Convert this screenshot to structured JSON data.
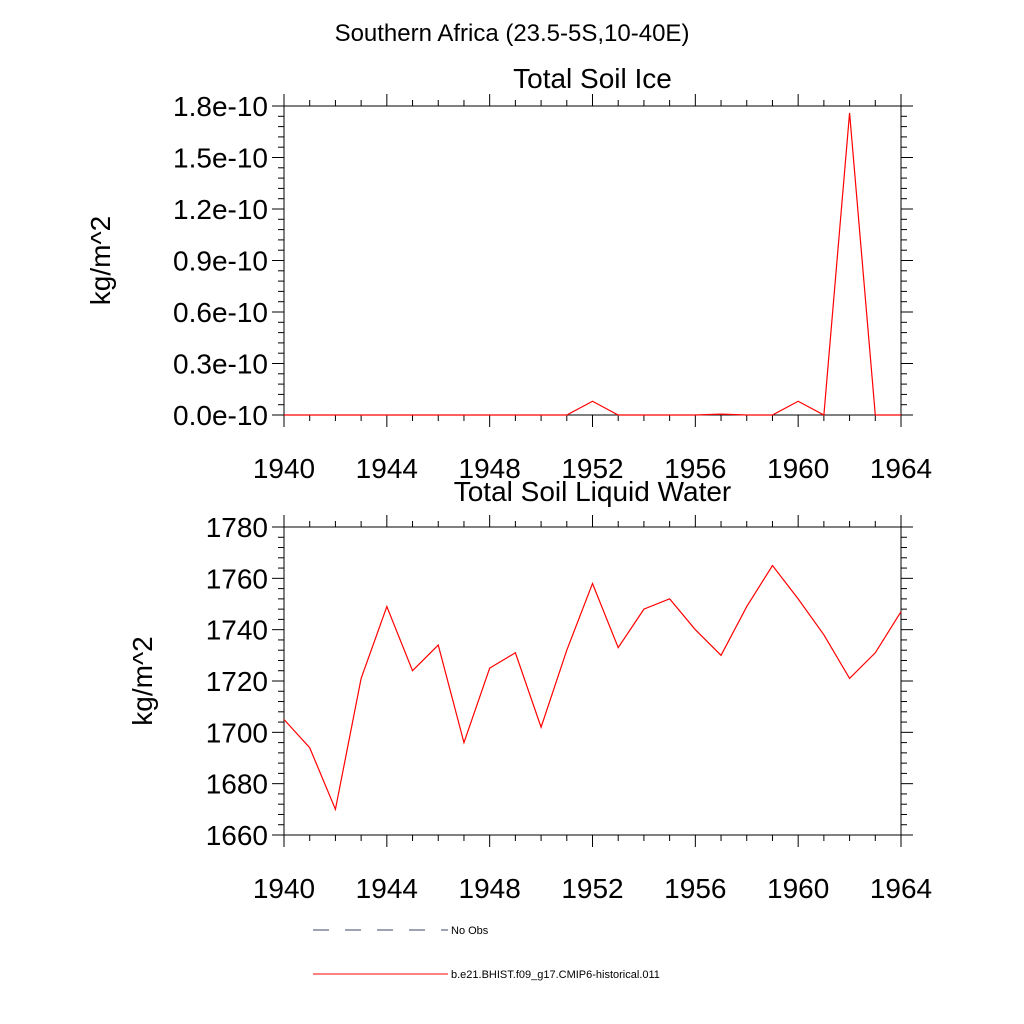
{
  "figure": {
    "suptitle": "Southern Africa (23.5-5S,10-40E)"
  },
  "chart_data": [
    {
      "type": "line",
      "title": "Total Soil Ice",
      "xlabel": "",
      "ylabel": "kg/m^2",
      "xlim": [
        1940,
        1964
      ],
      "ylim": [
        0,
        1.8e-10
      ],
      "grid": false,
      "x_ticks": [
        1940,
        1944,
        1948,
        1952,
        1956,
        1960,
        1964
      ],
      "x_tick_labels": [
        "1940",
        "1944",
        "1948",
        "1952",
        "1956",
        "1960",
        "1964"
      ],
      "y_ticks": [
        0,
        3e-11,
        6e-11,
        9e-11,
        1.2e-10,
        1.5e-10,
        1.8e-10
      ],
      "y_tick_labels": [
        "0.0e-10",
        "0.3e-10",
        "0.6e-10",
        "0.9e-10",
        "1.2e-10",
        "1.5e-10",
        "1.8e-10"
      ],
      "x": [
        1940,
        1941,
        1942,
        1943,
        1944,
        1945,
        1946,
        1947,
        1948,
        1949,
        1950,
        1951,
        1952,
        1953,
        1954,
        1955,
        1956,
        1957,
        1958,
        1959,
        1960,
        1961,
        1962,
        1963,
        1964
      ],
      "series": [
        {
          "name": "b.e21.BHIST.f09_g17.CMIP6-historical.011",
          "color": "#ff0000",
          "values": [
            0,
            0,
            0,
            0,
            0,
            0,
            0,
            0,
            0,
            0,
            0,
            0,
            8e-12,
            0,
            0,
            0,
            0,
            5e-13,
            0,
            0,
            8e-12,
            0,
            1.76e-10,
            0,
            0
          ]
        }
      ]
    },
    {
      "type": "line",
      "title": "Total Soil Liquid Water",
      "xlabel": "",
      "ylabel": "kg/m^2",
      "xlim": [
        1940,
        1964
      ],
      "ylim": [
        1660,
        1780
      ],
      "grid": false,
      "x_ticks": [
        1940,
        1944,
        1948,
        1952,
        1956,
        1960,
        1964
      ],
      "x_tick_labels": [
        "1940",
        "1944",
        "1948",
        "1952",
        "1956",
        "1960",
        "1964"
      ],
      "y_ticks": [
        1660,
        1680,
        1700,
        1720,
        1740,
        1760,
        1780
      ],
      "y_tick_labels": [
        "1660",
        "1680",
        "1700",
        "1720",
        "1740",
        "1760",
        "1780"
      ],
      "x": [
        1940,
        1941,
        1942,
        1943,
        1944,
        1945,
        1946,
        1947,
        1948,
        1949,
        1950,
        1951,
        1952,
        1953,
        1954,
        1955,
        1956,
        1957,
        1958,
        1959,
        1960,
        1961,
        1962,
        1963,
        1964
      ],
      "series": [
        {
          "name": "b.e21.BHIST.f09_g17.CMIP6-historical.011",
          "color": "#ff0000",
          "values": [
            1705,
            1694,
            1670,
            1721,
            1749,
            1724,
            1734,
            1696,
            1725,
            1731,
            1702,
            1732,
            1758,
            1733,
            1748,
            1752,
            1740,
            1730,
            1749,
            1765,
            1752,
            1738,
            1721,
            1731,
            1747
          ]
        }
      ]
    }
  ],
  "legend": {
    "placement": "bottom",
    "items": [
      {
        "label": "No Obs",
        "color": "#3a4a6a",
        "dash": "dashed"
      },
      {
        "label": "b.e21.BHIST.f09_g17.CMIP6-historical.011",
        "color": "#ff0000",
        "dash": "solid"
      }
    ]
  }
}
